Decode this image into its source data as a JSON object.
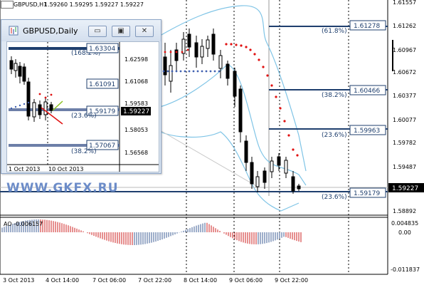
{
  "header": {
    "symbol_info": "GBPUSD,H1",
    "ohlc": "1.59260 1.59295 1.59227 1.59227"
  },
  "price_axis": {
    "ticks": [
      "1.61557",
      "1.61262",
      "1.60967",
      "1.60672",
      "1.60377",
      "1.60077",
      "1.59782",
      "1.59487",
      "1.59227",
      "1.58892"
    ],
    "current_price": "1.59227"
  },
  "levels": [
    {
      "pct": "(61.8%)",
      "price": "1.61278"
    },
    {
      "pct": "(38.2%)",
      "price": "1.60466"
    },
    {
      "pct": "(23.6%)",
      "price": "1.59963"
    },
    {
      "pct": "(23.6%)",
      "price": "1.59179"
    }
  ],
  "indicator": {
    "label": "AO -0.006157",
    "ticks": [
      "0.004835",
      "0.00",
      "-0.011837"
    ]
  },
  "time_axis": [
    "3 Oct 2013",
    "4 Oct 14:00",
    "7 Oct 06:00",
    "7 Oct 22:00",
    "8 Oct 14:00",
    "9 Oct 06:00",
    "9 Oct 22:00"
  ],
  "watermark": "WWW.GKFX.RU",
  "daily_window": {
    "title": "GBPUSD,Daily",
    "buttons": {
      "minimize": "▭",
      "maximize": "▣",
      "close": "✕"
    },
    "price_ticks": [
      "1.62598",
      "1.61068",
      "1.59583",
      "1.58053",
      "1.56568"
    ],
    "current_price": "1.59227",
    "levels": [
      {
        "pct": "(168.2%)",
        "price": "1.63304"
      },
      {
        "pct": "",
        "price": "1.61091"
      },
      {
        "pct": "(23.6%)",
        "price": "1.59179"
      },
      {
        "pct": "(38.2%)",
        "price": "1.57067"
      }
    ],
    "time_axis": [
      "1 Oct 2013",
      "10 Oct 2013"
    ]
  },
  "colors": {
    "fib_line": "#1f3f6e",
    "band": "#7fc4e6",
    "ao_up": "#3d5c96",
    "ao_down": "#cc1f1f",
    "psar": "#e01010",
    "psar_blue": "#4060b0"
  }
}
